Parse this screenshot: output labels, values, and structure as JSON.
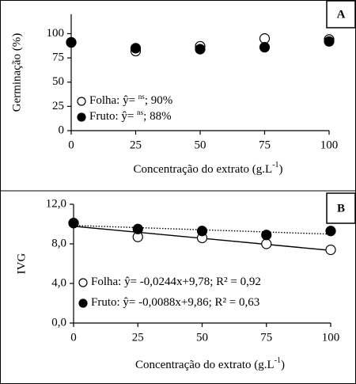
{
  "chart_data": [
    {
      "type": "scatter",
      "panel_label": "A",
      "ylabel": "Germinação  (%)",
      "xlabel": "Concentração  do extrato (g.L",
      "xlabel_sup": "-1",
      "xlabel_end": ")",
      "x": [
        0,
        25,
        50,
        75,
        100
      ],
      "xlim": [
        0,
        100
      ],
      "xticks": [
        0,
        25,
        50,
        75,
        100
      ],
      "ylim": [
        0,
        120
      ],
      "yticks": [
        0,
        25,
        50,
        75,
        100
      ],
      "series": [
        {
          "name": "Folha: ŷ= ",
          "name_sup": "ns",
          "name_end": "; 90%",
          "color": "#ffffff",
          "values": [
            91,
            82,
            87,
            95,
            94
          ]
        },
        {
          "name": "Fruto: ŷ= ",
          "name_sup": "ns",
          "name_end": "; 88%",
          "color": "#000000",
          "values": [
            91,
            85,
            84,
            86,
            92
          ]
        }
      ]
    },
    {
      "type": "scatter",
      "panel_label": "B",
      "ylabel": "IVG",
      "xlabel": "Concentração  do extrato (g.L",
      "xlabel_sup": "-1",
      "xlabel_end": ")",
      "x": [
        0,
        25,
        50,
        75,
        100
      ],
      "xlim": [
        0,
        100
      ],
      "xticks": [
        0,
        25,
        50,
        75,
        100
      ],
      "ylim": [
        0,
        12
      ],
      "yticks": [
        {
          "value": 0,
          "label": "0,0"
        },
        {
          "value": 4,
          "label": "4,0"
        },
        {
          "value": 8,
          "label": "8,0"
        },
        {
          "value": 12,
          "label": "12,0"
        }
      ],
      "series": [
        {
          "name": "Folha: ŷ= -0,0244x+9,78;  R² = 0,92",
          "color": "#ffffff",
          "values": [
            10.1,
            8.7,
            8.6,
            8.0,
            7.4
          ],
          "trend": {
            "slope": -0.0244,
            "intercept": 9.78,
            "dash": "none"
          }
        },
        {
          "name": "Fruto: ŷ= -0,0088x+9,86;  R² = 0,63",
          "color": "#000000",
          "values": [
            10.1,
            9.5,
            9.3,
            8.9,
            9.3
          ],
          "trend": {
            "slope": -0.0088,
            "intercept": 9.86,
            "dash": "1.5 2"
          }
        }
      ]
    }
  ]
}
